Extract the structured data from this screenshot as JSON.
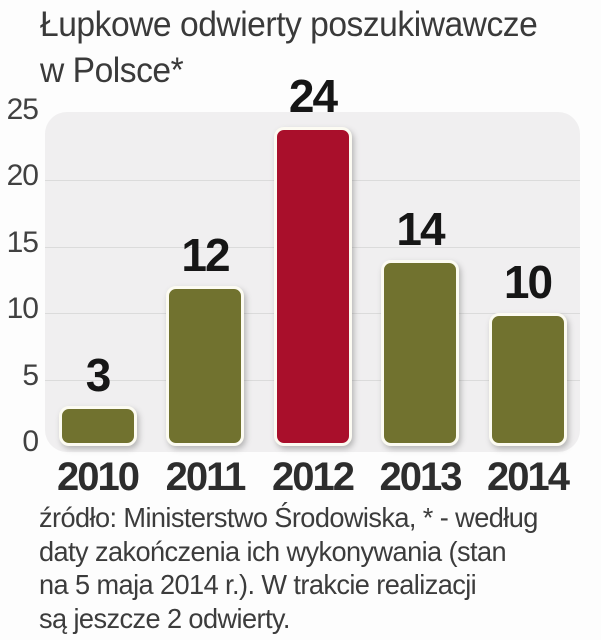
{
  "title": {
    "lines": [
      "Łupkowe odwierty poszukiwawcze",
      "w Polsce*"
    ]
  },
  "source": {
    "lines": [
      "źródło: Ministerstwo Środowiska, * - według",
      "daty zakończenia ich wykonywania (stan",
      "na 5 maja 2014 r.). W trakcie realizacji",
      "są jeszcze 2 odwierty."
    ]
  },
  "chart_data": {
    "type": "bar",
    "title": "Łupkowe odwierty poszukiwawcze w Polsce*",
    "categories": [
      "2010",
      "2011",
      "2012",
      "2013",
      "2014"
    ],
    "values": [
      3,
      12,
      24,
      14,
      10
    ],
    "highlight_index": 2,
    "xlabel": "",
    "ylabel": "",
    "ylim": [
      0,
      25
    ],
    "yticks": [
      0,
      5,
      10,
      15,
      20,
      25
    ],
    "grid": true,
    "legend": "none",
    "colors": {
      "bar": "#71722f",
      "highlight_bar": "#a90f2b",
      "bar_border": "#fcfbf2",
      "plot_bg": "#f0eff0",
      "gridline": "#dbdbdb",
      "title_text": "#3a3a3a",
      "value_text": "#161616",
      "axis_text": "#414141"
    }
  }
}
